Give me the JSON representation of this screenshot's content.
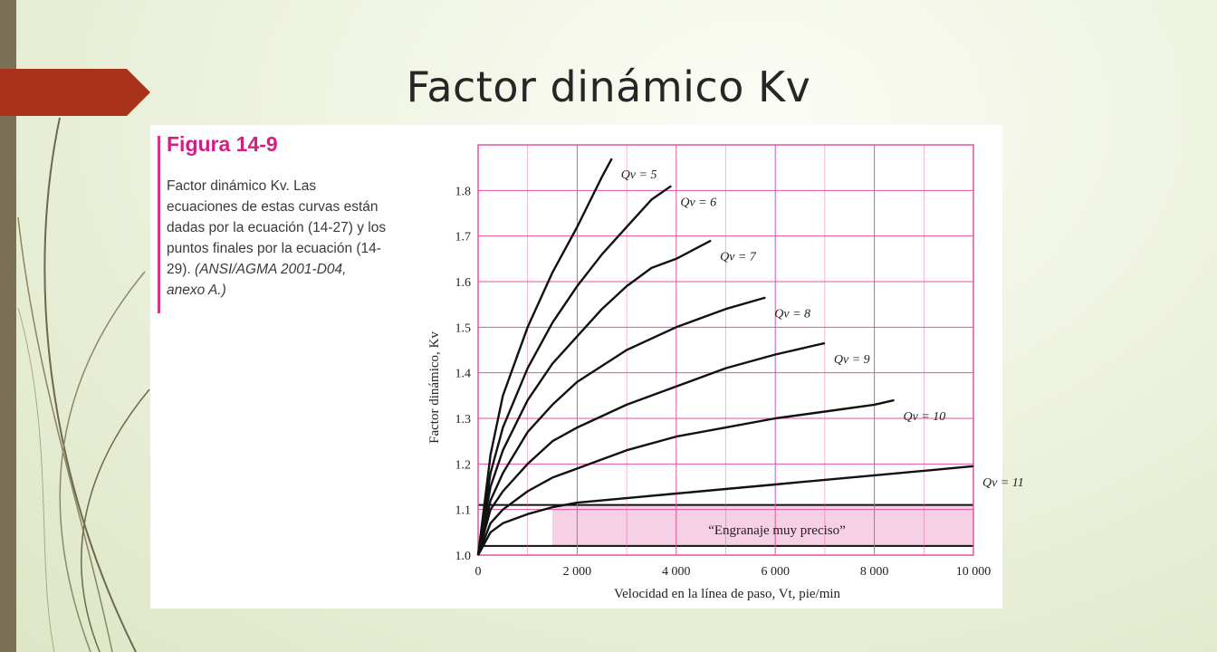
{
  "slide": {
    "title": "Factor dinámico Kv",
    "accent_color": "#a8321a",
    "sidebar_color": "#7b7156"
  },
  "figure": {
    "number": "Figura 14-9",
    "caption_main": "Factor dinámico Kv. Las ecuaciones de estas curvas están dadas por la ecuación (14-27) y los puntos finales por la ecuación (14-29).",
    "caption_source": "(ANSI/AGMA 2001-D04, anexo A.)",
    "accent_color": "#d21f85"
  },
  "chart_data": {
    "type": "line",
    "xlabel": "Velocidad en la línea de paso, Vt, pie/min",
    "ylabel": "Factor dinámico, Kv",
    "xlim": [
      0,
      10000
    ],
    "ylim": [
      1.0,
      1.9
    ],
    "xticks": [
      0,
      2000,
      4000,
      6000,
      8000,
      10000
    ],
    "xtick_labels": [
      "0",
      "2 000",
      "4 000",
      "6 000",
      "8 000",
      "10 000"
    ],
    "yticks": [
      1.0,
      1.1,
      1.2,
      1.3,
      1.4,
      1.5,
      1.6,
      1.7,
      1.8
    ],
    "ytick_labels": [
      "1.0",
      "1.1",
      "1.2",
      "1.3",
      "1.4",
      "1.5",
      "1.6",
      "1.7",
      "1.8"
    ],
    "grid": true,
    "grid_color": "#e0559e",
    "series": [
      {
        "name": "Qv = 5",
        "x": [
          0,
          250,
          500,
          1000,
          1500,
          2000,
          2500,
          2700
        ],
        "y": [
          1.0,
          1.22,
          1.35,
          1.5,
          1.62,
          1.72,
          1.83,
          1.87
        ]
      },
      {
        "name": "Qv = 6",
        "x": [
          0,
          250,
          500,
          1000,
          1500,
          2000,
          2500,
          3000,
          3500,
          3900
        ],
        "y": [
          1.0,
          1.18,
          1.28,
          1.41,
          1.51,
          1.59,
          1.66,
          1.72,
          1.78,
          1.81
        ]
      },
      {
        "name": "Qv = 7",
        "x": [
          0,
          250,
          500,
          1000,
          1500,
          2000,
          2500,
          3000,
          3500,
          4000,
          4700
        ],
        "y": [
          1.0,
          1.15,
          1.23,
          1.34,
          1.42,
          1.48,
          1.54,
          1.59,
          1.63,
          1.65,
          1.69
        ]
      },
      {
        "name": "Qv = 8",
        "x": [
          0,
          250,
          500,
          1000,
          1500,
          2000,
          3000,
          4000,
          5000,
          5800
        ],
        "y": [
          1.0,
          1.12,
          1.18,
          1.27,
          1.33,
          1.38,
          1.45,
          1.5,
          1.54,
          1.565
        ]
      },
      {
        "name": "Qv = 9",
        "x": [
          0,
          250,
          500,
          1000,
          1500,
          2000,
          3000,
          4000,
          5000,
          6000,
          7000
        ],
        "y": [
          1.0,
          1.1,
          1.14,
          1.2,
          1.25,
          1.28,
          1.33,
          1.37,
          1.41,
          1.44,
          1.465
        ]
      },
      {
        "name": "Qv = 10",
        "x": [
          0,
          250,
          500,
          1000,
          1500,
          2000,
          3000,
          4000,
          5000,
          6000,
          7000,
          8000,
          8400
        ],
        "y": [
          1.0,
          1.07,
          1.1,
          1.14,
          1.17,
          1.19,
          1.23,
          1.26,
          1.28,
          1.3,
          1.315,
          1.33,
          1.34
        ]
      },
      {
        "name": "Qv = 11",
        "x": [
          0,
          250,
          500,
          1000,
          1500,
          2000,
          3000,
          4000,
          5000,
          6000,
          7000,
          8000,
          9000,
          10000
        ],
        "y": [
          1.0,
          1.05,
          1.07,
          1.09,
          1.105,
          1.115,
          1.125,
          1.135,
          1.145,
          1.155,
          1.165,
          1.175,
          1.185,
          1.195
        ]
      }
    ],
    "band": {
      "label": "“Engranaje muy preciso”",
      "y_bottom": 1.02,
      "y_top": 1.11,
      "x_start": 1500,
      "x_end": 10000,
      "fill": "#f6d0e4"
    }
  }
}
